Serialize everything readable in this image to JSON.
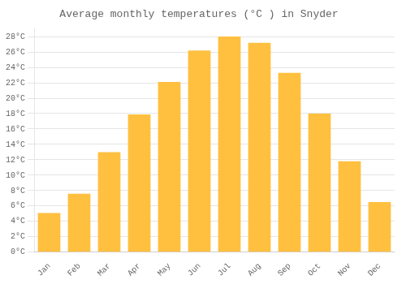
{
  "chart_data": {
    "type": "bar",
    "title": "Average monthly temperatures (°C ) in Snyder",
    "categories": [
      "Jan",
      "Feb",
      "Mar",
      "Apr",
      "May",
      "Jun",
      "Jul",
      "Aug",
      "Sep",
      "Oct",
      "Nov",
      "Dec"
    ],
    "values": [
      5.1,
      7.6,
      13.0,
      17.9,
      22.1,
      26.2,
      28.0,
      27.2,
      23.3,
      18.0,
      11.8,
      6.5
    ],
    "color": "#FFC040",
    "ylim": [
      0,
      29
    ],
    "yticks": [
      {
        "value": 0,
        "label": "0°C"
      },
      {
        "value": 2,
        "label": "2°C"
      },
      {
        "value": 4,
        "label": "4°C"
      },
      {
        "value": 6,
        "label": "6°C"
      },
      {
        "value": 8,
        "label": "8°C"
      },
      {
        "value": 10,
        "label": "10°C"
      },
      {
        "value": 12,
        "label": "12°C"
      },
      {
        "value": 14,
        "label": "14°C"
      },
      {
        "value": 16,
        "label": "16°C"
      },
      {
        "value": 18,
        "label": "18°C"
      },
      {
        "value": 20,
        "label": "20°C"
      },
      {
        "value": 22,
        "label": "22°C"
      },
      {
        "value": 24,
        "label": "24°C"
      },
      {
        "value": 26,
        "label": "26°C"
      },
      {
        "value": 28,
        "label": "28°C"
      }
    ],
    "grid": true
  }
}
